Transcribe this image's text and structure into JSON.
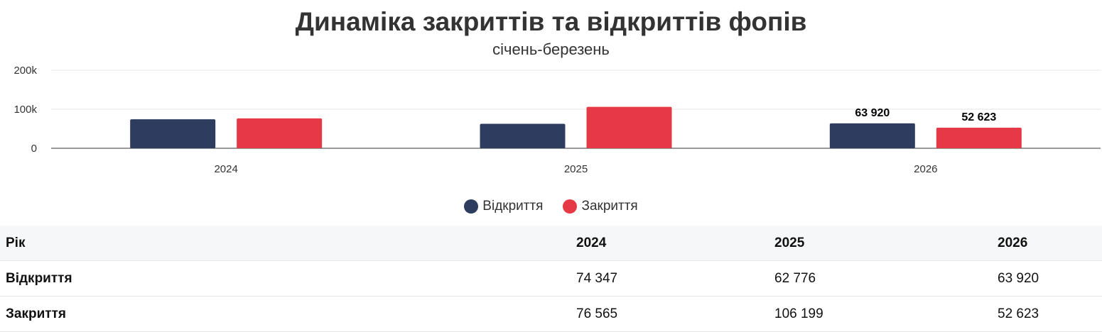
{
  "chart_data": {
    "type": "bar",
    "title": "Динаміка закриттів та відкриттів фопів",
    "subtitle": "січень-березень",
    "categories": [
      "2024",
      "2025",
      "2026"
    ],
    "series": [
      {
        "name": "Відкриття",
        "color": "#2e3d5f",
        "values": [
          74347,
          62776,
          63920
        ]
      },
      {
        "name": "Закриття",
        "color": "#e63946",
        "values": [
          76565,
          106199,
          52623
        ]
      }
    ],
    "y_ticks": [
      0,
      100000,
      200000
    ],
    "y_tick_labels": [
      "0",
      "100k",
      "200k"
    ],
    "ylim": [
      0,
      200000
    ],
    "data_labels": [
      {
        "series": 0,
        "category": 2,
        "text": "63 920"
      },
      {
        "series": 1,
        "category": 2,
        "text": "52 623"
      }
    ],
    "grid": true,
    "legend": "bottom-center"
  },
  "table": {
    "header": [
      "Рік",
      "2024",
      "2025",
      "2026"
    ],
    "rows": [
      [
        "Відкриття",
        "74 347",
        "62 776",
        "63 920"
      ],
      [
        "Закриття",
        "76 565",
        "106 199",
        "52 623"
      ]
    ]
  }
}
